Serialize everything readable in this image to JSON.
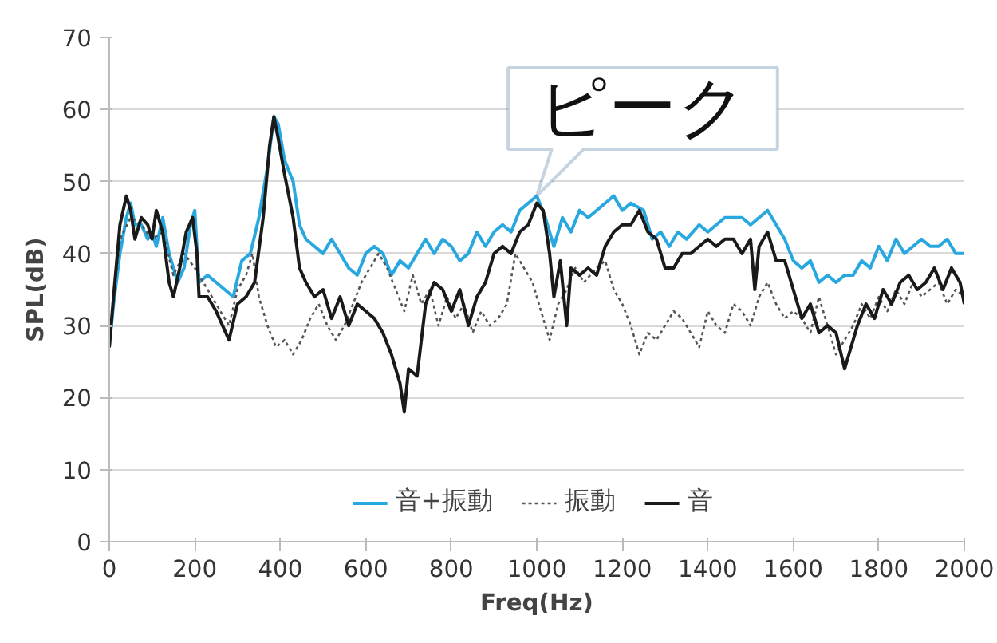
{
  "chart_data": {
    "type": "line",
    "xlabel": "Freq(Hz)",
    "ylabel": "SPL(dB)",
    "xlim": [
      0,
      2000
    ],
    "xticks": [
      0,
      200,
      400,
      600,
      800,
      1000,
      1200,
      1400,
      1600,
      1800,
      2000
    ],
    "ylim": [
      0,
      70
    ],
    "yticks": [
      0,
      10,
      20,
      30,
      40,
      50,
      60,
      70
    ],
    "grid": "y",
    "legend": "bottom",
    "marker": "none",
    "annotations": [
      {
        "text": "ピーク",
        "x": 1000,
        "y": 48
      }
    ],
    "series": [
      {
        "name": "音+振動",
        "color": "#29a8e0",
        "line_style": "solid",
        "x": [
          0,
          10,
          25,
          40,
          50,
          60,
          75,
          90,
          100,
          110,
          125,
          140,
          160,
          175,
          190,
          200,
          210,
          230,
          250,
          270,
          290,
          310,
          330,
          350,
          370,
          385,
          395,
          410,
          430,
          445,
          460,
          480,
          500,
          520,
          540,
          560,
          580,
          600,
          620,
          640,
          660,
          680,
          700,
          720,
          740,
          760,
          780,
          800,
          820,
          840,
          860,
          880,
          900,
          920,
          940,
          960,
          980,
          1000,
          1020,
          1040,
          1060,
          1080,
          1100,
          1120,
          1140,
          1160,
          1180,
          1200,
          1220,
          1250,
          1270,
          1290,
          1310,
          1330,
          1350,
          1380,
          1400,
          1420,
          1440,
          1460,
          1480,
          1500,
          1520,
          1540,
          1560,
          1580,
          1600,
          1620,
          1640,
          1660,
          1680,
          1700,
          1720,
          1740,
          1760,
          1780,
          1800,
          1820,
          1840,
          1860,
          1880,
          1900,
          1920,
          1940,
          1960,
          1980,
          2000
        ],
        "values": [
          27,
          33,
          40,
          45,
          47,
          44,
          44,
          42,
          43,
          41,
          45,
          40,
          36,
          38,
          44,
          46,
          36,
          37,
          36,
          35,
          34,
          39,
          40,
          45,
          52,
          59,
          58,
          53,
          50,
          44,
          42,
          41,
          40,
          42,
          40,
          38,
          37,
          40,
          41,
          40,
          37,
          39,
          38,
          40,
          42,
          40,
          42,
          41,
          39,
          40,
          43,
          41,
          43,
          44,
          43,
          46,
          47,
          48,
          45,
          41,
          45,
          43,
          46,
          45,
          46,
          47,
          48,
          46,
          47,
          46,
          42,
          43,
          41,
          43,
          42,
          44,
          43,
          44,
          45,
          45,
          45,
          44,
          45,
          46,
          44,
          42,
          39,
          38,
          39,
          36,
          37,
          36,
          37,
          37,
          39,
          38,
          41,
          39,
          42,
          40,
          41,
          42,
          41,
          41,
          42,
          40,
          40
        ]
      },
      {
        "name": "振動",
        "color": "#555555",
        "line_style": "dotted",
        "x": [
          0,
          25,
          50,
          75,
          100,
          125,
          150,
          175,
          200,
          230,
          260,
          280,
          300,
          320,
          335,
          350,
          370,
          390,
          410,
          430,
          450,
          470,
          490,
          510,
          530,
          550,
          570,
          590,
          610,
          630,
          650,
          670,
          690,
          710,
          730,
          750,
          770,
          790,
          810,
          830,
          850,
          870,
          890,
          910,
          930,
          950,
          970,
          990,
          1010,
          1030,
          1050,
          1070,
          1090,
          1110,
          1140,
          1160,
          1180,
          1200,
          1220,
          1240,
          1260,
          1280,
          1300,
          1320,
          1340,
          1360,
          1380,
          1400,
          1420,
          1440,
          1460,
          1480,
          1500,
          1520,
          1540,
          1560,
          1580,
          1600,
          1620,
          1640,
          1660,
          1680,
          1700,
          1720,
          1740,
          1760,
          1780,
          1800,
          1820,
          1840,
          1860,
          1880,
          1900,
          1920,
          1940,
          1960,
          1980,
          2000
        ],
        "values": [
          28,
          42,
          45,
          44,
          42,
          43,
          37,
          40,
          38,
          35,
          32,
          30,
          35,
          37,
          40,
          34,
          30,
          27,
          28,
          26,
          28,
          31,
          33,
          30,
          28,
          30,
          33,
          36,
          38,
          40,
          38,
          35,
          32,
          37,
          33,
          35,
          30,
          34,
          31,
          33,
          29,
          32,
          30,
          31,
          33,
          40,
          38,
          36,
          32,
          28,
          33,
          35,
          38,
          36,
          38,
          39,
          35,
          33,
          30,
          26,
          29,
          28,
          30,
          32,
          31,
          29,
          27,
          32,
          30,
          29,
          33,
          32,
          30,
          34,
          36,
          33,
          31,
          32,
          31,
          29,
          34,
          30,
          26,
          28,
          30,
          33,
          31,
          34,
          32,
          35,
          33,
          36,
          34,
          35,
          36,
          33,
          35,
          34
        ]
      },
      {
        "name": "音",
        "color": "#1a1a1a",
        "line_style": "solid",
        "x": [
          0,
          10,
          25,
          40,
          50,
          60,
          75,
          90,
          100,
          110,
          125,
          140,
          150,
          165,
          180,
          195,
          205,
          210,
          230,
          250,
          265,
          280,
          300,
          320,
          340,
          360,
          375,
          385,
          395,
          410,
          430,
          445,
          460,
          480,
          500,
          520,
          540,
          560,
          580,
          600,
          620,
          640,
          660,
          680,
          690,
          700,
          720,
          740,
          760,
          780,
          800,
          820,
          840,
          860,
          880,
          900,
          920,
          940,
          960,
          980,
          1000,
          1015,
          1030,
          1040,
          1055,
          1070,
          1080,
          1100,
          1120,
          1140,
          1160,
          1180,
          1200,
          1220,
          1240,
          1260,
          1280,
          1300,
          1320,
          1340,
          1360,
          1380,
          1400,
          1420,
          1440,
          1460,
          1480,
          1500,
          1510,
          1520,
          1540,
          1560,
          1580,
          1600,
          1620,
          1640,
          1660,
          1680,
          1700,
          1720,
          1730,
          1750,
          1770,
          1790,
          1810,
          1830,
          1850,
          1870,
          1890,
          1910,
          1930,
          1950,
          1970,
          1990,
          2000
        ],
        "values": [
          27,
          34,
          44,
          48,
          46,
          42,
          45,
          44,
          42,
          46,
          43,
          36,
          34,
          38,
          43,
          45,
          40,
          34,
          34,
          32,
          30,
          28,
          33,
          34,
          36,
          45,
          55,
          59,
          56,
          51,
          45,
          38,
          36,
          34,
          35,
          31,
          34,
          30,
          33,
          32,
          31,
          29,
          26,
          22,
          18,
          24,
          23,
          33,
          36,
          35,
          32,
          35,
          30,
          34,
          36,
          40,
          41,
          40,
          43,
          44,
          47,
          46,
          40,
          34,
          39,
          30,
          38,
          37,
          38,
          37,
          41,
          43,
          44,
          44,
          46,
          43,
          42,
          38,
          38,
          40,
          40,
          41,
          42,
          41,
          42,
          42,
          40,
          42,
          35,
          41,
          43,
          39,
          39,
          35,
          31,
          33,
          29,
          30,
          29,
          24,
          26,
          30,
          33,
          31,
          35,
          33,
          36,
          37,
          35,
          36,
          38,
          35,
          38,
          36,
          33
        ]
      }
    ]
  }
}
